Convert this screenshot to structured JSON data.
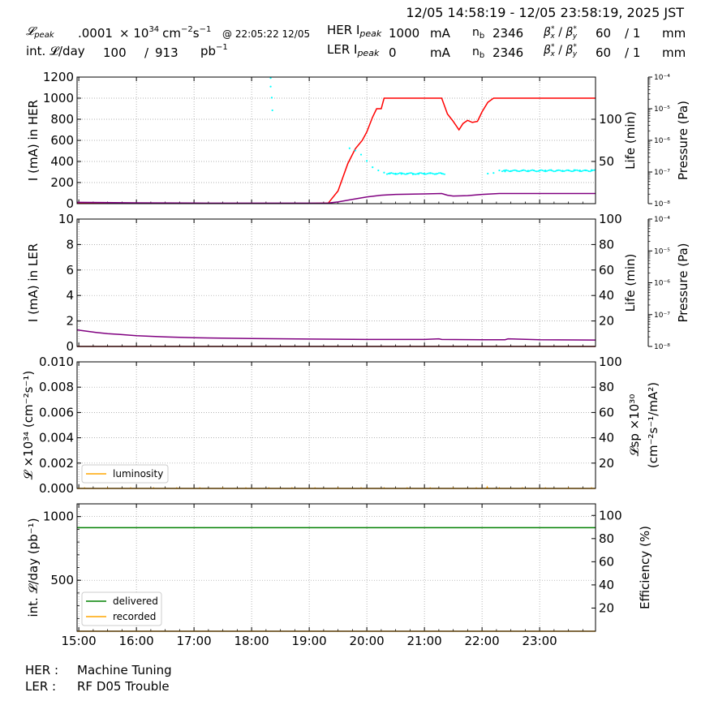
{
  "header": {
    "time_range": "12/05 14:58:19 - 12/05 23:58:19, 2025 JST",
    "lpeak_label": "𝓛",
    "lpeak_sub": "peak",
    "lpeak_value": ".0001",
    "lpeak_unit_prefix": "× 10",
    "lpeak_unit_exp": "34",
    "lpeak_unit_rest": "cm",
    "lpeak_unit_exp2": "−2",
    "lpeak_unit_s": "s",
    "lpeak_unit_exp3": "−1",
    "lpeak_time": "@ 22:05:22 12/05",
    "intl_label": "int. 𝓛/day",
    "intl_value": "100",
    "intl_sep": "/",
    "intl_total": "913",
    "intl_unit": "pb",
    "intl_unit_exp": "−1",
    "her_ipeak_label": "HER I",
    "her_ipeak_sub": "peak",
    "her_ipeak_value": "1000",
    "her_ipeak_unit": "mA",
    "ler_ipeak_label": "LER I",
    "ler_ipeak_sub": "peak",
    "ler_ipeak_value": "0",
    "ler_ipeak_unit": "mA",
    "nb_label": "n",
    "nb_sub": "b",
    "her_nb": "2346",
    "ler_nb": "2346",
    "beta_label": "β",
    "her_beta_x": "60",
    "her_beta_y": "/ 1",
    "ler_beta_x": "60",
    "ler_beta_y": "/ 1",
    "beta_unit": "mm"
  },
  "footer": {
    "her_label": "HER :",
    "her_status": "Machine Tuning",
    "ler_label": "LER :",
    "ler_status": "RF D05 Trouble"
  },
  "colors": {
    "her_current": "#ff0000",
    "ler_current": "#8b0000",
    "life": "#800080",
    "pressure": "#00ffff",
    "luminosity": "#ffa500",
    "delivered": "#008000",
    "recorded": "#ffa500",
    "grid": "#999999"
  },
  "chart_data": [
    {
      "type": "line",
      "panel": "HER",
      "ylabel": "I (mA) in HER",
      "ylim": [
        0,
        1200
      ],
      "yticks": [
        "0",
        "200",
        "400",
        "600",
        "800",
        "1000",
        "1200"
      ],
      "y2label": "Life (min)",
      "y2lim": [
        0,
        150
      ],
      "y2ticks": [
        "50",
        "100"
      ],
      "y3label": "Pressure (Pa)",
      "y3ticks": [
        "10⁻⁸",
        "10⁻⁷",
        "10⁻⁶",
        "10⁻⁵",
        "10⁻⁴"
      ],
      "xlim": [
        14.97,
        23.97
      ],
      "grid": true,
      "series": [
        {
          "role": "current",
          "x": [
            14.97,
            16,
            17,
            18,
            19,
            19.33,
            19.5,
            19.67,
            19.8,
            19.92,
            20.0,
            20.1,
            20.17,
            20.25,
            20.3,
            20.5,
            21.0,
            21.3,
            21.4,
            21.5,
            21.6,
            21.67,
            21.75,
            21.83,
            21.92,
            22.0,
            22.1,
            22.2,
            22.5,
            23.0,
            23.5,
            23.97
          ],
          "y": [
            5,
            3,
            2,
            2,
            2,
            5,
            120,
            380,
            520,
            600,
            680,
            820,
            900,
            900,
            1000,
            1000,
            1000,
            1000,
            850,
            780,
            700,
            760,
            790,
            770,
            780,
            870,
            960,
            1000,
            1000,
            1000,
            1000,
            1000
          ]
        },
        {
          "role": "life",
          "x": [
            14.97,
            16,
            17,
            18,
            19,
            19.33,
            19.5,
            19.75,
            20.0,
            20.25,
            20.5,
            21.0,
            21.3,
            21.4,
            21.5,
            21.75,
            22.0,
            22.3,
            22.5,
            23.0,
            23.5,
            23.97
          ],
          "y": [
            1.5,
            1,
            0.7,
            0.6,
            0.6,
            0.8,
            2,
            5,
            8,
            10,
            11,
            11.5,
            12,
            10,
            9,
            9.5,
            11,
            12,
            12,
            12,
            12,
            12
          ]
        },
        {
          "role": "pressure",
          "log10_x": [
            18.33,
            18.33,
            18.35,
            18.36,
            19.7,
            19.8,
            19.9,
            20.0,
            20.1,
            20.2,
            20.3,
            20.4,
            20.5,
            20.6,
            20.7,
            20.8,
            20.9,
            21.0,
            21.1,
            21.2,
            21.3,
            22.1,
            22.2,
            22.3,
            22.4,
            22.5,
            22.6,
            22.7,
            22.8,
            22.9,
            23.0,
            23.1,
            23.2,
            23.3,
            23.4,
            23.5,
            23.6,
            23.7,
            23.8,
            23.9
          ],
          "log10_y": [
            -4.03,
            -4.3,
            -4.65,
            -5.05,
            -6.25,
            -6.32,
            -6.45,
            -6.65,
            -6.85,
            -6.95,
            -7.02,
            -7.05,
            -7.05,
            -7.06,
            -7.05,
            -7.07,
            -7.06,
            -7.05,
            -7.04,
            -7.06,
            -7.05,
            -7.05,
            -7.03,
            -6.95,
            -6.98,
            -6.97,
            -6.96,
            -6.95,
            -6.96,
            -6.95,
            -6.96,
            -6.95,
            -6.94,
            -6.95,
            -6.96,
            -6.95,
            -6.94,
            -6.95,
            -6.95,
            -6.94
          ]
        }
      ]
    },
    {
      "type": "line",
      "panel": "LER",
      "ylabel": "I (mA) in LER",
      "ylim": [
        0,
        10
      ],
      "yticks": [
        "0",
        "2",
        "4",
        "6",
        "8",
        "10"
      ],
      "y2label": "Life (min)",
      "y2lim": [
        0,
        100
      ],
      "y2ticks": [
        "20",
        "40",
        "60",
        "80",
        "100"
      ],
      "y3label": "Pressure (Pa)",
      "y3ticks": [
        "10⁻⁸",
        "10⁻⁷",
        "10⁻⁶",
        "10⁻⁵",
        "10⁻⁴"
      ],
      "xlim": [
        14.97,
        23.97
      ],
      "grid": true,
      "series": [
        {
          "role": "current",
          "x": [
            14.97,
            23.97
          ],
          "y": [
            0,
            0
          ]
        },
        {
          "role": "life",
          "x": [
            14.97,
            15.3,
            15.5,
            15.7,
            16,
            16.5,
            17,
            18,
            19,
            20,
            21,
            21.25,
            21.3,
            22,
            22.4,
            22.45,
            23,
            23.97
          ],
          "y": [
            13,
            11,
            10,
            9.5,
            8.5,
            7.5,
            6.8,
            6.2,
            5.8,
            5.5,
            5.5,
            6,
            5.5,
            5.3,
            5.3,
            6,
            5.2,
            5
          ]
        }
      ]
    },
    {
      "type": "line",
      "panel": "Luminosity",
      "ylabel": "𝓛 ×10³⁴ (cm⁻²s⁻¹)",
      "ylim": [
        0,
        0.01
      ],
      "yticks": [
        "0.000",
        "0.002",
        "0.004",
        "0.006",
        "0.008",
        "0.010"
      ],
      "y2label": "𝓛sp ×10³⁰ (cm⁻²s⁻¹/mA²)",
      "y2lim": [
        0,
        100
      ],
      "y2ticks": [
        "20",
        "40",
        "60",
        "80",
        "100"
      ],
      "xlim": [
        14.97,
        23.97
      ],
      "grid": true,
      "legend": "bottom-left",
      "series": [
        {
          "name": "luminosity",
          "x": [
            14.97,
            22.08,
            22.09,
            22.1,
            23.97
          ],
          "y": [
            0,
            0,
            0.0001,
            0,
            0
          ]
        }
      ]
    },
    {
      "type": "line",
      "panel": "Integrated",
      "ylabel": "int. 𝓛/day (pb⁻¹)",
      "ylim": [
        100,
        1100
      ],
      "yticks": [
        "500",
        "1000"
      ],
      "y2label": "Efficiency (%)",
      "y2lim": [
        0,
        110
      ],
      "y2ticks": [
        "20",
        "40",
        "60",
        "80",
        "100"
      ],
      "xlim": [
        14.97,
        23.97
      ],
      "xticks": [
        "15:00",
        "16:00",
        "17:00",
        "18:00",
        "19:00",
        "20:00",
        "21:00",
        "22:00",
        "23:00"
      ],
      "grid": true,
      "legend": "bottom-left",
      "series": [
        {
          "name": "delivered",
          "x": [
            14.97,
            23.97
          ],
          "y": [
            913,
            913
          ]
        },
        {
          "name": "recorded",
          "x": [
            14.97,
            23.97
          ],
          "y": [
            100,
            100
          ]
        }
      ]
    }
  ]
}
